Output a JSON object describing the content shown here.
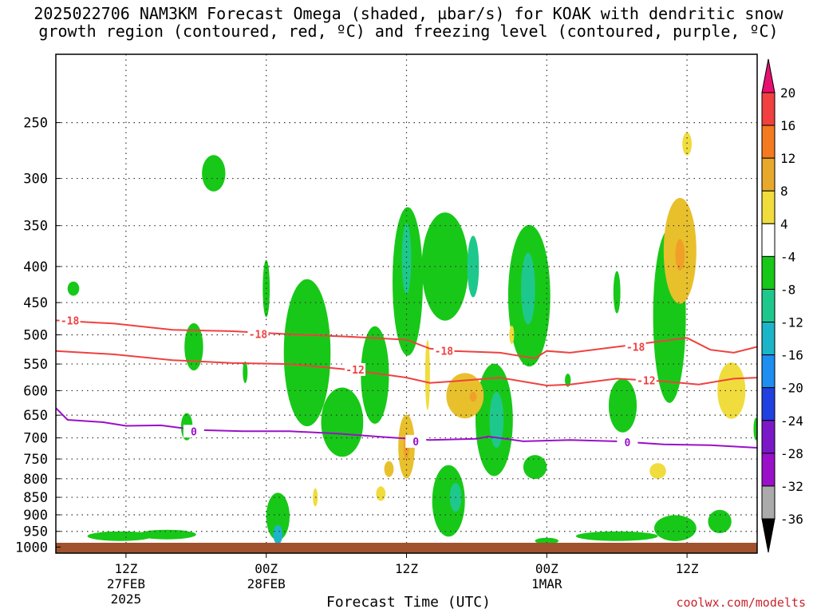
{
  "title_line1": "2025022706 NAM3KM Forecast Omega (shaded, µbar/s) for KOAK with dendritic snow",
  "title_line2": "growth region (contoured, red, ºC) and freezing level (contoured, purple, ºC)",
  "credit": "coolwx.com/modelts",
  "chart_data": {
    "type": "time-height contour",
    "title": "2025022706 NAM3KM Forecast Omega (shaded, µbar/s) for KOAK with dendritic snow growth region (contoured, red, ºC) and freezing level (contoured, purple, ºC)",
    "xlabel": "Forecast Time (UTC)",
    "ylabel": "",
    "x_ticks": [
      {
        "label": "12Z",
        "sub1": "27FEB",
        "sub2": "2025",
        "hours": 6
      },
      {
        "label": "00Z",
        "sub1": "28FEB",
        "sub2": "",
        "hours": 18
      },
      {
        "label": "12Z",
        "sub1": "",
        "sub2": "",
        "hours": 30
      },
      {
        "label": "00Z",
        "sub1": "1MAR",
        "sub2": "",
        "hours": 42
      },
      {
        "label": "12Z",
        "sub1": "",
        "sub2": "",
        "hours": 54
      }
    ],
    "x_range_hours": [
      0,
      60
    ],
    "y_levels_mb": [
      250,
      300,
      350,
      400,
      450,
      500,
      550,
      600,
      650,
      700,
      750,
      800,
      850,
      900,
      950,
      1000
    ],
    "y_range_mb": [
      200,
      1020
    ],
    "y_log": true,
    "grid": true,
    "colorbar": {
      "labels": [
        "20",
        "16",
        "12",
        "8",
        "4",
        "-4",
        "-8",
        "-12",
        "-16",
        "-20",
        "-24",
        "-28",
        "-32",
        "-36"
      ],
      "colors": [
        "#e8106e",
        "#f04040",
        "#f47a20",
        "#e8a82c",
        "#f0dc3c",
        "#ffffff",
        "#18c818",
        "#1ec88c",
        "#1cb4c8",
        "#1e8ef0",
        "#2040e0",
        "#7a18c8",
        "#9a10c8",
        "#aaaaaa",
        "#000000"
      ]
    },
    "contours": [
      {
        "name": "-18",
        "color": "#f04040",
        "label": "-18",
        "points": [
          [
            0,
            477
          ],
          [
            5,
            482
          ],
          [
            10,
            492
          ],
          [
            15,
            494
          ],
          [
            20,
            499
          ],
          [
            25,
            503
          ],
          [
            30,
            508
          ],
          [
            32,
            523
          ],
          [
            34,
            527
          ],
          [
            38,
            530
          ],
          [
            41,
            540
          ],
          [
            42,
            527
          ],
          [
            44,
            530
          ],
          [
            48,
            520
          ],
          [
            52,
            510
          ],
          [
            54,
            505
          ],
          [
            56,
            525
          ],
          [
            58,
            530
          ],
          [
            60,
            520
          ]
        ],
        "label_at": [
          [
            1.2,
            477
          ],
          [
            17.3,
            499
          ],
          [
            33.2,
            527
          ],
          [
            49.6,
            520
          ]
        ]
      },
      {
        "name": "-12",
        "color": "#f04040",
        "label": "-12",
        "points": [
          [
            0,
            527
          ],
          [
            5,
            533
          ],
          [
            10,
            543
          ],
          [
            15,
            548
          ],
          [
            20,
            550
          ],
          [
            25,
            560
          ],
          [
            30,
            575
          ],
          [
            32,
            585
          ],
          [
            34,
            582
          ],
          [
            38,
            575
          ],
          [
            42,
            590
          ],
          [
            44,
            588
          ],
          [
            48,
            577
          ],
          [
            52,
            582
          ],
          [
            55,
            588
          ],
          [
            58,
            577
          ],
          [
            60,
            575
          ]
        ],
        "label_at": [
          [
            25.6,
            560
          ],
          [
            50.5,
            580
          ]
        ]
      },
      {
        "name": "0",
        "color": "#9a10c8",
        "label": "0",
        "points": [
          [
            0,
            635
          ],
          [
            1,
            660
          ],
          [
            4,
            665
          ],
          [
            6,
            673
          ],
          [
            9,
            672
          ],
          [
            12,
            682
          ],
          [
            16,
            685
          ],
          [
            20,
            685
          ],
          [
            24,
            690
          ],
          [
            28,
            698
          ],
          [
            32,
            705
          ],
          [
            36,
            702
          ],
          [
            37,
            697
          ],
          [
            40,
            708
          ],
          [
            44,
            705
          ],
          [
            48,
            708
          ],
          [
            52,
            715
          ],
          [
            56,
            717
          ],
          [
            60,
            723
          ]
        ],
        "label_at": [
          [
            11.8,
            685
          ],
          [
            30.8,
            708
          ],
          [
            48.9,
            710
          ]
        ]
      }
    ],
    "omega_features": [
      {
        "value": -8,
        "t": 1.5,
        "p": 430,
        "w": 0.5,
        "h": 20
      },
      {
        "value": -8,
        "t": 13.5,
        "p": 295,
        "w": 1.0,
        "h": 35
      },
      {
        "value": -8,
        "t": 11.8,
        "p": 520,
        "w": 0.8,
        "h": 80
      },
      {
        "value": -8,
        "t": 11.2,
        "p": 675,
        "w": 0.5,
        "h": 60
      },
      {
        "value": -8,
        "t": 16.2,
        "p": 565,
        "w": 0.2,
        "h": 40
      },
      {
        "value": -8,
        "t": 18.0,
        "p": 430,
        "w": 0.3,
        "h": 80
      },
      {
        "value": -8,
        "t": 21.5,
        "p": 530,
        "w": 2.0,
        "h": 250
      },
      {
        "value": -8,
        "t": 24.5,
        "p": 665,
        "w": 1.8,
        "h": 150
      },
      {
        "value": -8,
        "t": 27.3,
        "p": 570,
        "w": 1.2,
        "h": 180
      },
      {
        "value": -8,
        "t": 30.1,
        "p": 420,
        "w": 1.3,
        "h": 200
      },
      {
        "value": -12,
        "t": 30.0,
        "p": 390,
        "w": 0.4,
        "h": 90
      },
      {
        "value": -8,
        "t": 33.3,
        "p": 400,
        "w": 2.0,
        "h": 140
      },
      {
        "value": -12,
        "t": 35.7,
        "p": 400,
        "w": 0.5,
        "h": 80
      },
      {
        "value": -8,
        "t": 37.5,
        "p": 660,
        "w": 1.6,
        "h": 240
      },
      {
        "value": -12,
        "t": 37.7,
        "p": 660,
        "w": 0.6,
        "h": 120
      },
      {
        "value": -8,
        "t": 40.5,
        "p": 440,
        "w": 1.8,
        "h": 200
      },
      {
        "value": -12,
        "t": 40.4,
        "p": 430,
        "w": 0.6,
        "h": 100
      },
      {
        "value": -8,
        "t": 41.0,
        "p": 770,
        "w": 1.0,
        "h": 60
      },
      {
        "value": -8,
        "t": 33.6,
        "p": 860,
        "w": 1.4,
        "h": 200
      },
      {
        "value": -12,
        "t": 34.2,
        "p": 850,
        "w": 0.5,
        "h": 80
      },
      {
        "value": -8,
        "t": 48.5,
        "p": 630,
        "w": 1.2,
        "h": 110
      },
      {
        "value": -8,
        "t": 52.5,
        "p": 470,
        "w": 1.4,
        "h": 260
      },
      {
        "value": -8,
        "t": 56.8,
        "p": 920,
        "w": 1.0,
        "h": 70
      },
      {
        "value": -8,
        "t": 59.9,
        "p": 680,
        "w": 0.2,
        "h": 50
      },
      {
        "value": -8,
        "t": 19.0,
        "p": 905,
        "w": 1.0,
        "h": 140
      },
      {
        "value": -16,
        "t": 19.0,
        "p": 960,
        "w": 0.4,
        "h": 60
      },
      {
        "value": -8,
        "t": 5.5,
        "p": 965,
        "w": 2.8,
        "h": 30
      },
      {
        "value": -8,
        "t": 9.5,
        "p": 960,
        "w": 2.5,
        "h": 30
      },
      {
        "value": -8,
        "t": 48.0,
        "p": 965,
        "w": 3.5,
        "h": 30
      },
      {
        "value": -8,
        "t": 53.0,
        "p": 940,
        "w": 1.8,
        "h": 80
      },
      {
        "value": -8,
        "t": 42.0,
        "p": 980,
        "w": 1.0,
        "h": 15
      },
      {
        "value": -8,
        "t": 43.8,
        "p": 580,
        "w": 0.25,
        "h": 25
      },
      {
        "value": -8,
        "t": 48.0,
        "p": 435,
        "w": 0.3,
        "h": 60
      },
      {
        "value": -8,
        "t": 61.8,
        "p": 430,
        "w": 0.2,
        "h": 30
      },
      {
        "value": 8,
        "t": 30.0,
        "p": 720,
        "w": 0.7,
        "h": 150
      },
      {
        "value": 12,
        "t": 30.0,
        "p": 720,
        "w": 0.25,
        "h": 60
      },
      {
        "value": 8,
        "t": 35.0,
        "p": 610,
        "w": 1.6,
        "h": 90
      },
      {
        "value": 12,
        "t": 35.7,
        "p": 612,
        "w": 0.3,
        "h": 20
      },
      {
        "value": 8,
        "t": 53.4,
        "p": 380,
        "w": 1.4,
        "h": 130
      },
      {
        "value": 12,
        "t": 53.4,
        "p": 385,
        "w": 0.4,
        "h": 40
      },
      {
        "value": 4,
        "t": 54.0,
        "p": 268,
        "w": 0.4,
        "h": 20
      },
      {
        "value": 4,
        "t": 57.8,
        "p": 600,
        "w": 1.2,
        "h": 110
      },
      {
        "value": 4,
        "t": 51.5,
        "p": 780,
        "w": 0.7,
        "h": 40
      },
      {
        "value": 4,
        "t": 27.8,
        "p": 840,
        "w": 0.4,
        "h": 40
      },
      {
        "value": 4,
        "t": 22.2,
        "p": 850,
        "w": 0.2,
        "h": 50
      },
      {
        "value": 4,
        "t": 39.0,
        "p": 500,
        "w": 0.2,
        "h": 30
      },
      {
        "value": 4,
        "t": 31.8,
        "p": 570,
        "w": 0.2,
        "h": 130
      },
      {
        "value": 8,
        "t": 28.5,
        "p": 775,
        "w": 0.4,
        "h": 40
      }
    ]
  }
}
